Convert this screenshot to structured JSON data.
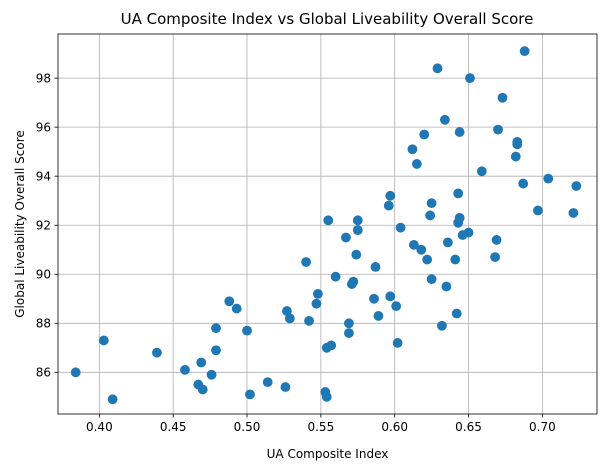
{
  "chart_data": {
    "type": "scatter",
    "title": "UA Composite Index vs Global Liveability Overall Score",
    "xlabel": "UA Composite Index",
    "ylabel": "Global Liveability Overall Score",
    "xlim": [
      0.372,
      0.737
    ],
    "ylim": [
      84.3,
      99.8
    ],
    "xticks": [
      0.4,
      0.45,
      0.5,
      0.55,
      0.6,
      0.65,
      0.7
    ],
    "xtick_labels": [
      "0.40",
      "0.45",
      "0.50",
      "0.55",
      "0.60",
      "0.65",
      "0.70"
    ],
    "yticks": [
      86,
      88,
      90,
      92,
      94,
      96,
      98
    ],
    "ytick_labels": [
      "86",
      "88",
      "90",
      "92",
      "94",
      "96",
      "98"
    ],
    "grid": true,
    "marker_color": "#1f77b4",
    "x": [
      0.384,
      0.403,
      0.409,
      0.439,
      0.458,
      0.467,
      0.469,
      0.47,
      0.476,
      0.479,
      0.479,
      0.488,
      0.493,
      0.5,
      0.502,
      0.514,
      0.526,
      0.527,
      0.529,
      0.54,
      0.542,
      0.547,
      0.548,
      0.553,
      0.554,
      0.554,
      0.555,
      0.557,
      0.56,
      0.567,
      0.569,
      0.569,
      0.571,
      0.572,
      0.574,
      0.575,
      0.575,
      0.586,
      0.587,
      0.589,
      0.596,
      0.597,
      0.597,
      0.601,
      0.602,
      0.604,
      0.612,
      0.613,
      0.615,
      0.618,
      0.62,
      0.622,
      0.624,
      0.625,
      0.625,
      0.629,
      0.632,
      0.634,
      0.635,
      0.636,
      0.641,
      0.642,
      0.643,
      0.643,
      0.644,
      0.644,
      0.646,
      0.65,
      0.651,
      0.659,
      0.668,
      0.669,
      0.67,
      0.673,
      0.682,
      0.683,
      0.683,
      0.687,
      0.688,
      0.697,
      0.704,
      0.721,
      0.723
    ],
    "y": [
      86.0,
      87.3,
      84.9,
      86.8,
      86.1,
      85.5,
      86.4,
      85.3,
      85.9,
      86.9,
      87.8,
      88.9,
      88.6,
      87.7,
      85.1,
      85.6,
      85.4,
      88.5,
      88.2,
      90.5,
      88.1,
      88.8,
      89.2,
      85.2,
      85.0,
      87.0,
      92.2,
      87.1,
      89.9,
      91.5,
      87.6,
      88.0,
      89.6,
      89.7,
      90.8,
      92.2,
      91.8,
      89.0,
      90.3,
      88.3,
      92.8,
      93.2,
      89.1,
      88.7,
      87.2,
      91.9,
      95.1,
      91.2,
      94.5,
      91.0,
      95.7,
      90.6,
      92.4,
      92.9,
      89.8,
      98.4,
      87.9,
      96.3,
      89.5,
      91.3,
      90.6,
      88.4,
      93.3,
      92.1,
      92.3,
      95.8,
      91.6,
      91.7,
      98.0,
      94.2,
      90.7,
      91.4,
      95.9,
      97.2,
      94.8,
      95.3,
      95.4,
      93.7,
      99.1,
      92.6,
      93.9,
      92.5,
      93.6
    ]
  }
}
